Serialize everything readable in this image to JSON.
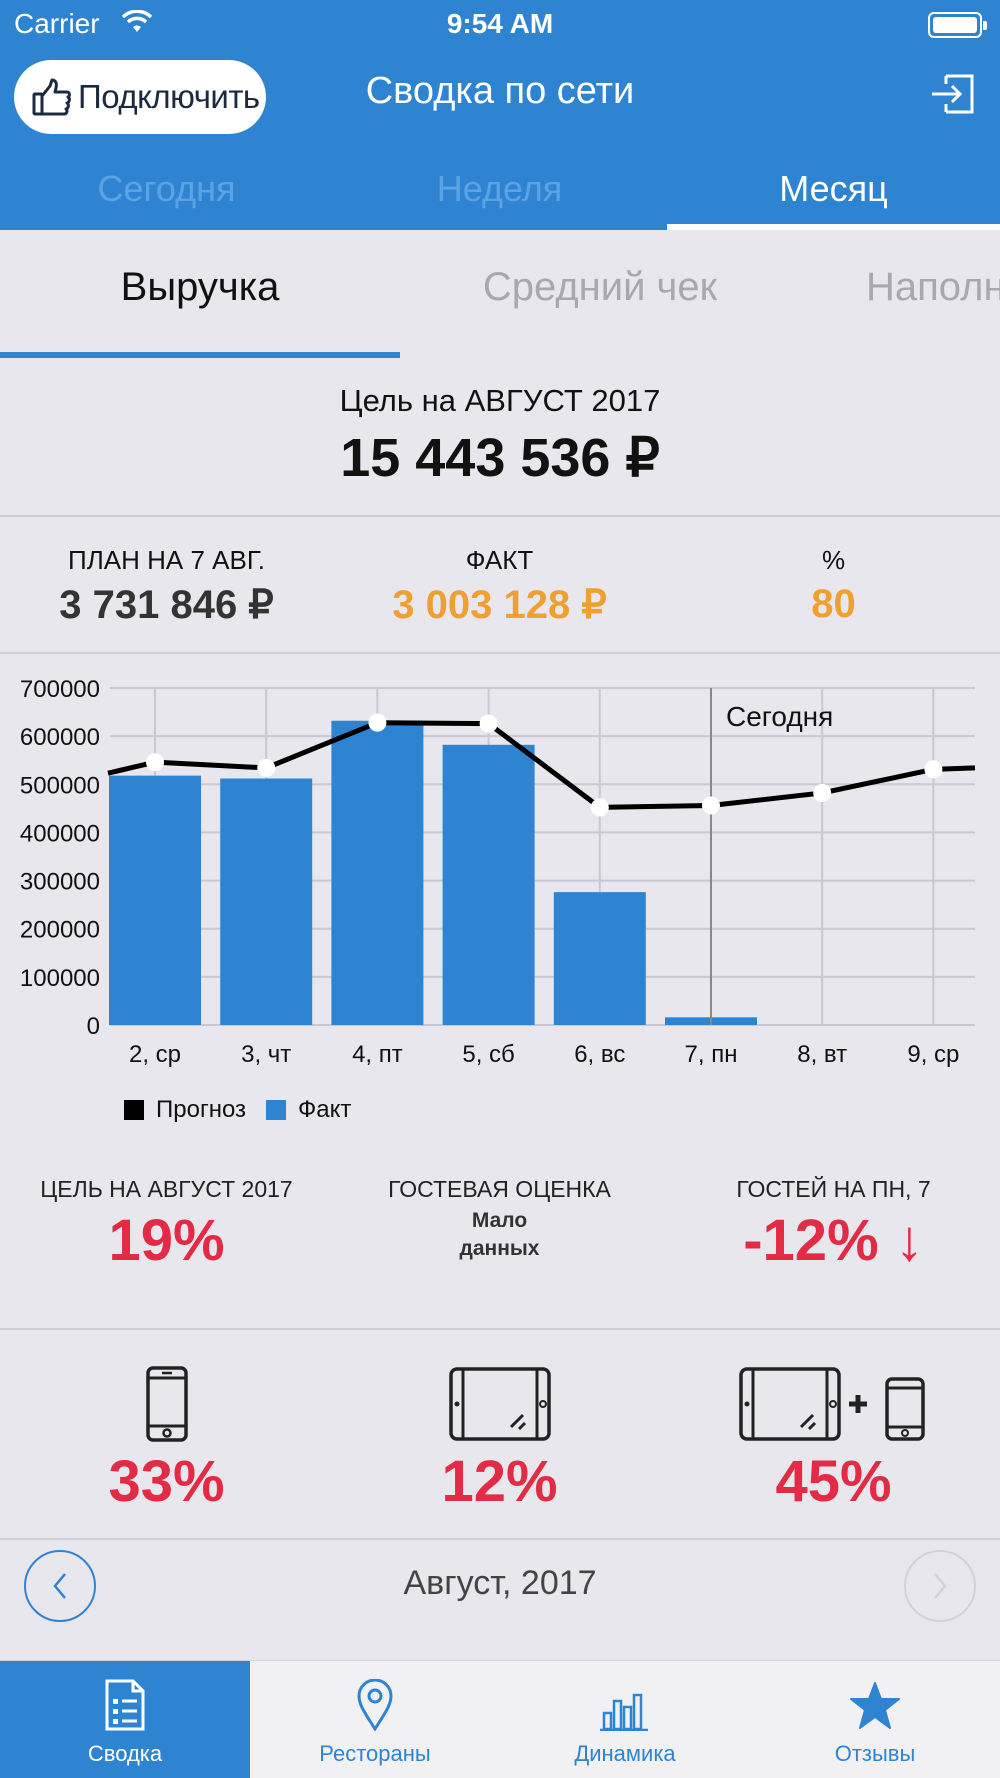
{
  "status_bar": {
    "carrier": "Carrier",
    "time": "9:54 AM"
  },
  "header": {
    "connect_label": "Подключить",
    "title": "Сводка по сети",
    "period_tabs": [
      {
        "label": "Сегодня",
        "active": false
      },
      {
        "label": "Неделя",
        "active": false
      },
      {
        "label": "Месяц",
        "active": true
      }
    ]
  },
  "metric_tabs": [
    {
      "label": "Выручка",
      "active": true
    },
    {
      "label": "Средний чек",
      "active": false
    },
    {
      "label": "Наполня",
      "active": false
    }
  ],
  "goal": {
    "label": "Цель на АВГУСТ 2017",
    "value": "15 443 536 ₽"
  },
  "stats": [
    {
      "label": "ПЛАН НА 7 АВГ.",
      "value": "3 731 846 ₽",
      "color": "#333333"
    },
    {
      "label": "ФАКТ",
      "value": "3 003 128 ₽",
      "color": "#f0a030"
    },
    {
      "label": "%",
      "value": "80",
      "color": "#f0a030"
    }
  ],
  "chart_data": {
    "type": "bar",
    "categories": [
      "2, ср",
      "3, чт",
      "4, пт",
      "5, сб",
      "6, вс",
      "7, пн",
      "8, вт",
      "9, ср"
    ],
    "ylim": [
      0,
      700000
    ],
    "yticks": [
      "0",
      "100000",
      "200000",
      "300000",
      "400000",
      "500000",
      "600000",
      "700000"
    ],
    "today_label": "Сегодня",
    "today_index": 5,
    "series": [
      {
        "name": "Факт",
        "kind": "bar",
        "color": "#2f84d1",
        "values": [
          518000,
          512000,
          632000,
          582000,
          276000,
          16000,
          null,
          null
        ]
      },
      {
        "name": "Прогноз",
        "kind": "line",
        "color": "#000000",
        "values": [
          546000,
          534000,
          628000,
          626000,
          452000,
          456000,
          482000,
          531000
        ],
        "edge_start": 523000,
        "edge_end": 534000
      }
    ],
    "legend": [
      {
        "label": "Прогноз",
        "color": "#000000"
      },
      {
        "label": "Факт",
        "color": "#2f84d1"
      }
    ]
  },
  "kpis": [
    {
      "label": "ЦЕЛЬ НА АВГУСТ 2017",
      "value": "19%"
    },
    {
      "label": "ГОСТЕВАЯ ОЦЕНКА",
      "note_line1": "Мало",
      "note_line2": "данных"
    },
    {
      "label": "ГОСТЕЙ НА ПН, 7",
      "value": "-12% ↓"
    }
  ],
  "devices": [
    {
      "icon": "phone-icon",
      "value": "33%"
    },
    {
      "icon": "tablet-icon",
      "value": "12%"
    },
    {
      "icon": "tablet-plus-phone-icon",
      "value": "45%"
    }
  ],
  "month_nav": {
    "label": "Август, 2017"
  },
  "tabbar": [
    {
      "label": "Сводка",
      "icon": "summary-icon",
      "active": true
    },
    {
      "label": "Рестораны",
      "icon": "location-pin-icon",
      "active": false
    },
    {
      "label": "Динамика",
      "icon": "bar-chart-icon",
      "active": false
    },
    {
      "label": "Отзывы",
      "icon": "star-icon",
      "active": false
    }
  ],
  "colors": {
    "accent": "#2f84d1",
    "negative": "#e32b45",
    "fact": "#f0a030"
  }
}
